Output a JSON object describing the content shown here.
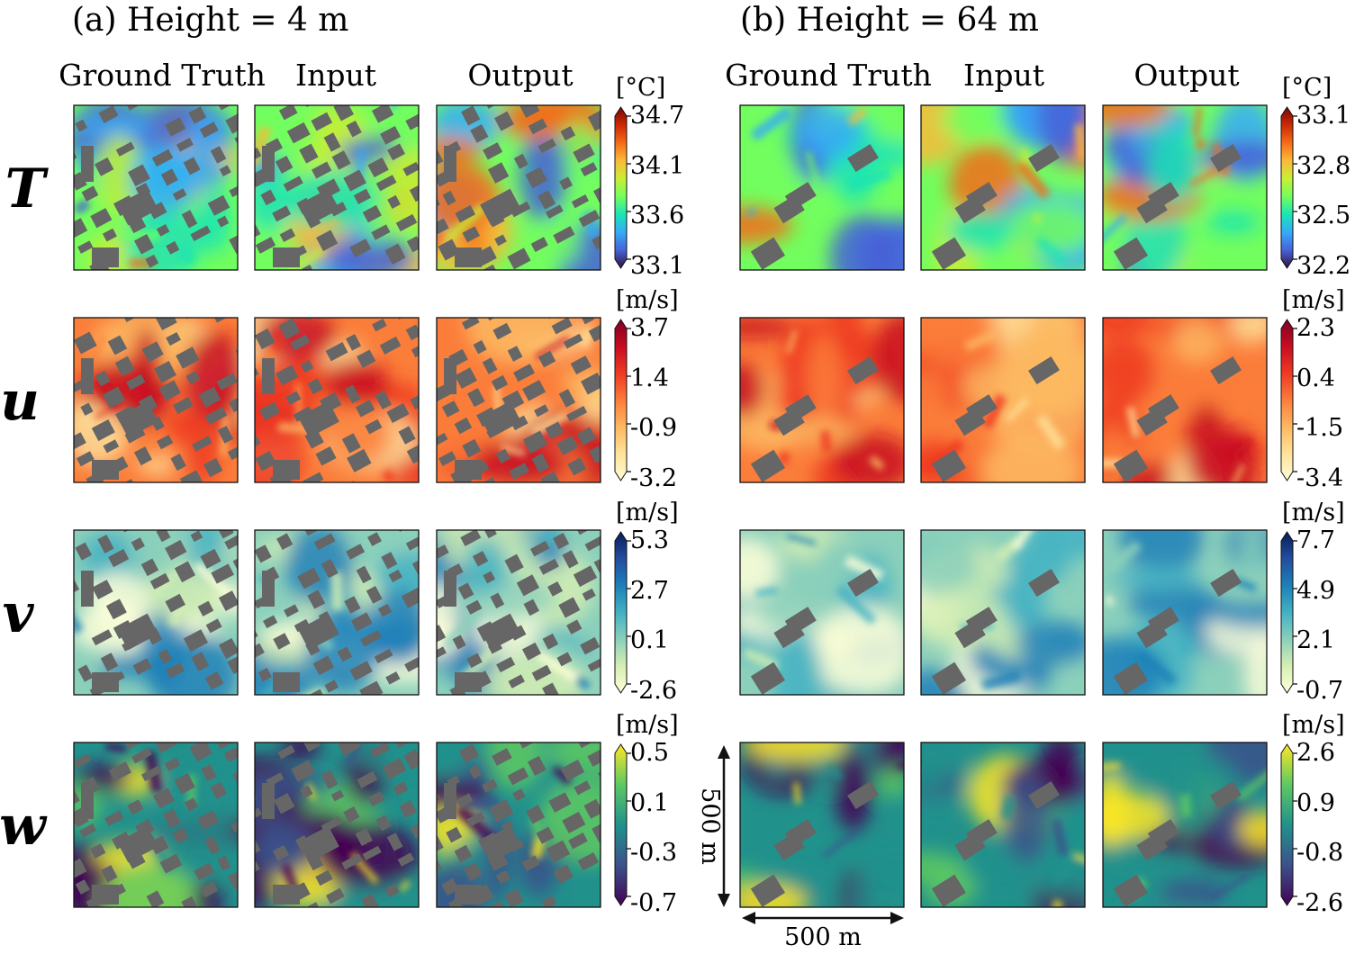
{
  "figure": {
    "panels": [
      {
        "id": "a",
        "title": "(a) Height = 4 m"
      },
      {
        "id": "b",
        "title": "(b) Height = 64 m"
      }
    ],
    "column_titles": [
      "Ground Truth",
      "Input",
      "Output"
    ],
    "rows": [
      {
        "var": "T",
        "cmap": "turbo",
        "unit": "[°C]",
        "ticks_a": [
          "34.7",
          "34.1",
          "33.6",
          "33.1"
        ],
        "ticks_b": [
          "33.1",
          "32.8",
          "32.5",
          "32.2"
        ]
      },
      {
        "var": "u",
        "cmap": "reds",
        "unit": "[m/s]",
        "ticks_a": [
          "3.7",
          "1.4",
          "-0.9",
          "-3.2"
        ],
        "ticks_b": [
          "2.3",
          "0.4",
          "-1.5",
          "-3.4"
        ]
      },
      {
        "var": "v",
        "cmap": "blues",
        "unit": "[m/s]",
        "ticks_a": [
          "5.3",
          "2.7",
          "0.1",
          "-2.6"
        ],
        "ticks_b": [
          "7.7",
          "4.9",
          "2.1",
          "-0.7"
        ]
      },
      {
        "var": "w",
        "cmap": "viridis",
        "unit": "[m/s]",
        "ticks_a": [
          "0.5",
          "0.1",
          "-0.3",
          "-0.7"
        ],
        "ticks_b": [
          "2.6",
          "0.9",
          "-0.8",
          "-2.6"
        ]
      }
    ],
    "scale_bar": {
      "vertical": "500 m",
      "horizontal": "500 m"
    },
    "colors": {
      "building": "#666666",
      "turbo": [
        "#30123b",
        "#4662d7",
        "#36aaf9",
        "#1ae4b6",
        "#72fe5e",
        "#c8ef34",
        "#faba39",
        "#f66b19",
        "#ca2a04",
        "#7a0403"
      ],
      "reds": [
        "#fffbd6",
        "#fee39a",
        "#fdb862",
        "#fb7d3a",
        "#ee3a22",
        "#c80c22",
        "#7f0024"
      ],
      "blues": [
        "#ffffd9",
        "#d5efb3",
        "#8bd0bb",
        "#43b1c3",
        "#1d80b8",
        "#234da0",
        "#081d58"
      ],
      "viridis": [
        "#440154",
        "#3b528b",
        "#21918c",
        "#5ec962",
        "#fde725"
      ]
    }
  }
}
